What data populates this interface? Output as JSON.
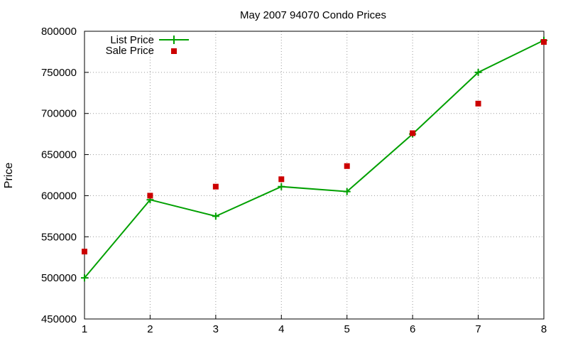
{
  "chart_data": {
    "type": "line",
    "title": "May 2007 94070 Condo Prices",
    "xlabel": "",
    "ylabel": "Price",
    "x": [
      1,
      2,
      3,
      4,
      5,
      6,
      7,
      8
    ],
    "xlim": [
      1,
      8
    ],
    "ylim": [
      450000,
      800000
    ],
    "x_ticks": [
      "1",
      "2",
      "3",
      "4",
      "5",
      "6",
      "7",
      "8"
    ],
    "y_ticks": [
      "450000",
      "500000",
      "550000",
      "600000",
      "650000",
      "700000",
      "750000",
      "800000"
    ],
    "grid": true,
    "legend_position": "top-left",
    "series": [
      {
        "name": "List Price",
        "type": "line",
        "marker": "plus",
        "color": "#00a000",
        "values": [
          500000,
          595000,
          575000,
          611000,
          605000,
          675000,
          750000,
          789000
        ]
      },
      {
        "name": "Sale Price",
        "type": "scatter",
        "marker": "square",
        "color": "#cc0000",
        "values": [
          532000,
          600000,
          611000,
          620000,
          636000,
          676000,
          712000,
          787000
        ]
      }
    ]
  }
}
